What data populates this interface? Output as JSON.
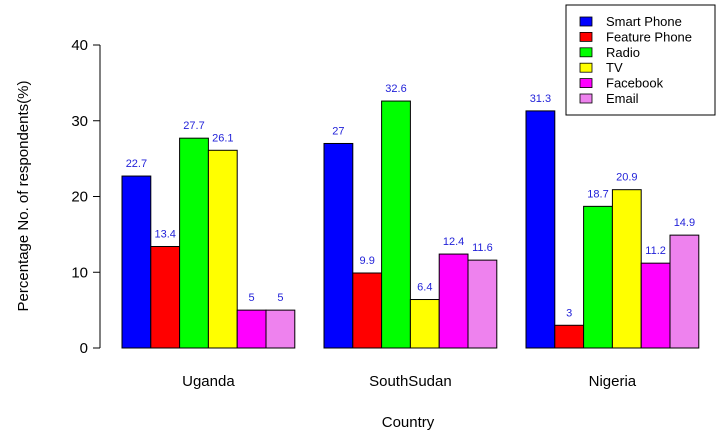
{
  "chart_data": {
    "type": "bar",
    "categories": [
      "Uganda",
      "SouthSudan",
      "Nigeria"
    ],
    "series": [
      {
        "name": "Smart Phone",
        "color": "#0000ff",
        "values": [
          22.7,
          27,
          31.3
        ]
      },
      {
        "name": "Feature Phone",
        "color": "#ff0000",
        "values": [
          13.4,
          9.9,
          3
        ]
      },
      {
        "name": "Radio",
        "color": "#00ff00",
        "values": [
          27.7,
          32.6,
          18.7
        ]
      },
      {
        "name": "TV",
        "color": "#ffff00",
        "values": [
          26.1,
          6.4,
          20.9
        ]
      },
      {
        "name": "Facebook",
        "color": "#ff00ff",
        "values": [
          5,
          12.4,
          11.2
        ]
      },
      {
        "name": "Email",
        "color": "#ee82ee",
        "values": [
          5,
          11.6,
          14.9
        ]
      }
    ],
    "xlabel": "Country",
    "ylabel": "Percentage No. of respondents(%)",
    "ylim": [
      0,
      40
    ],
    "yticks": [
      0,
      10,
      20,
      30,
      40
    ],
    "data_label_color": "#1f1fd8",
    "legend_position": "top-right",
    "grid": false
  }
}
